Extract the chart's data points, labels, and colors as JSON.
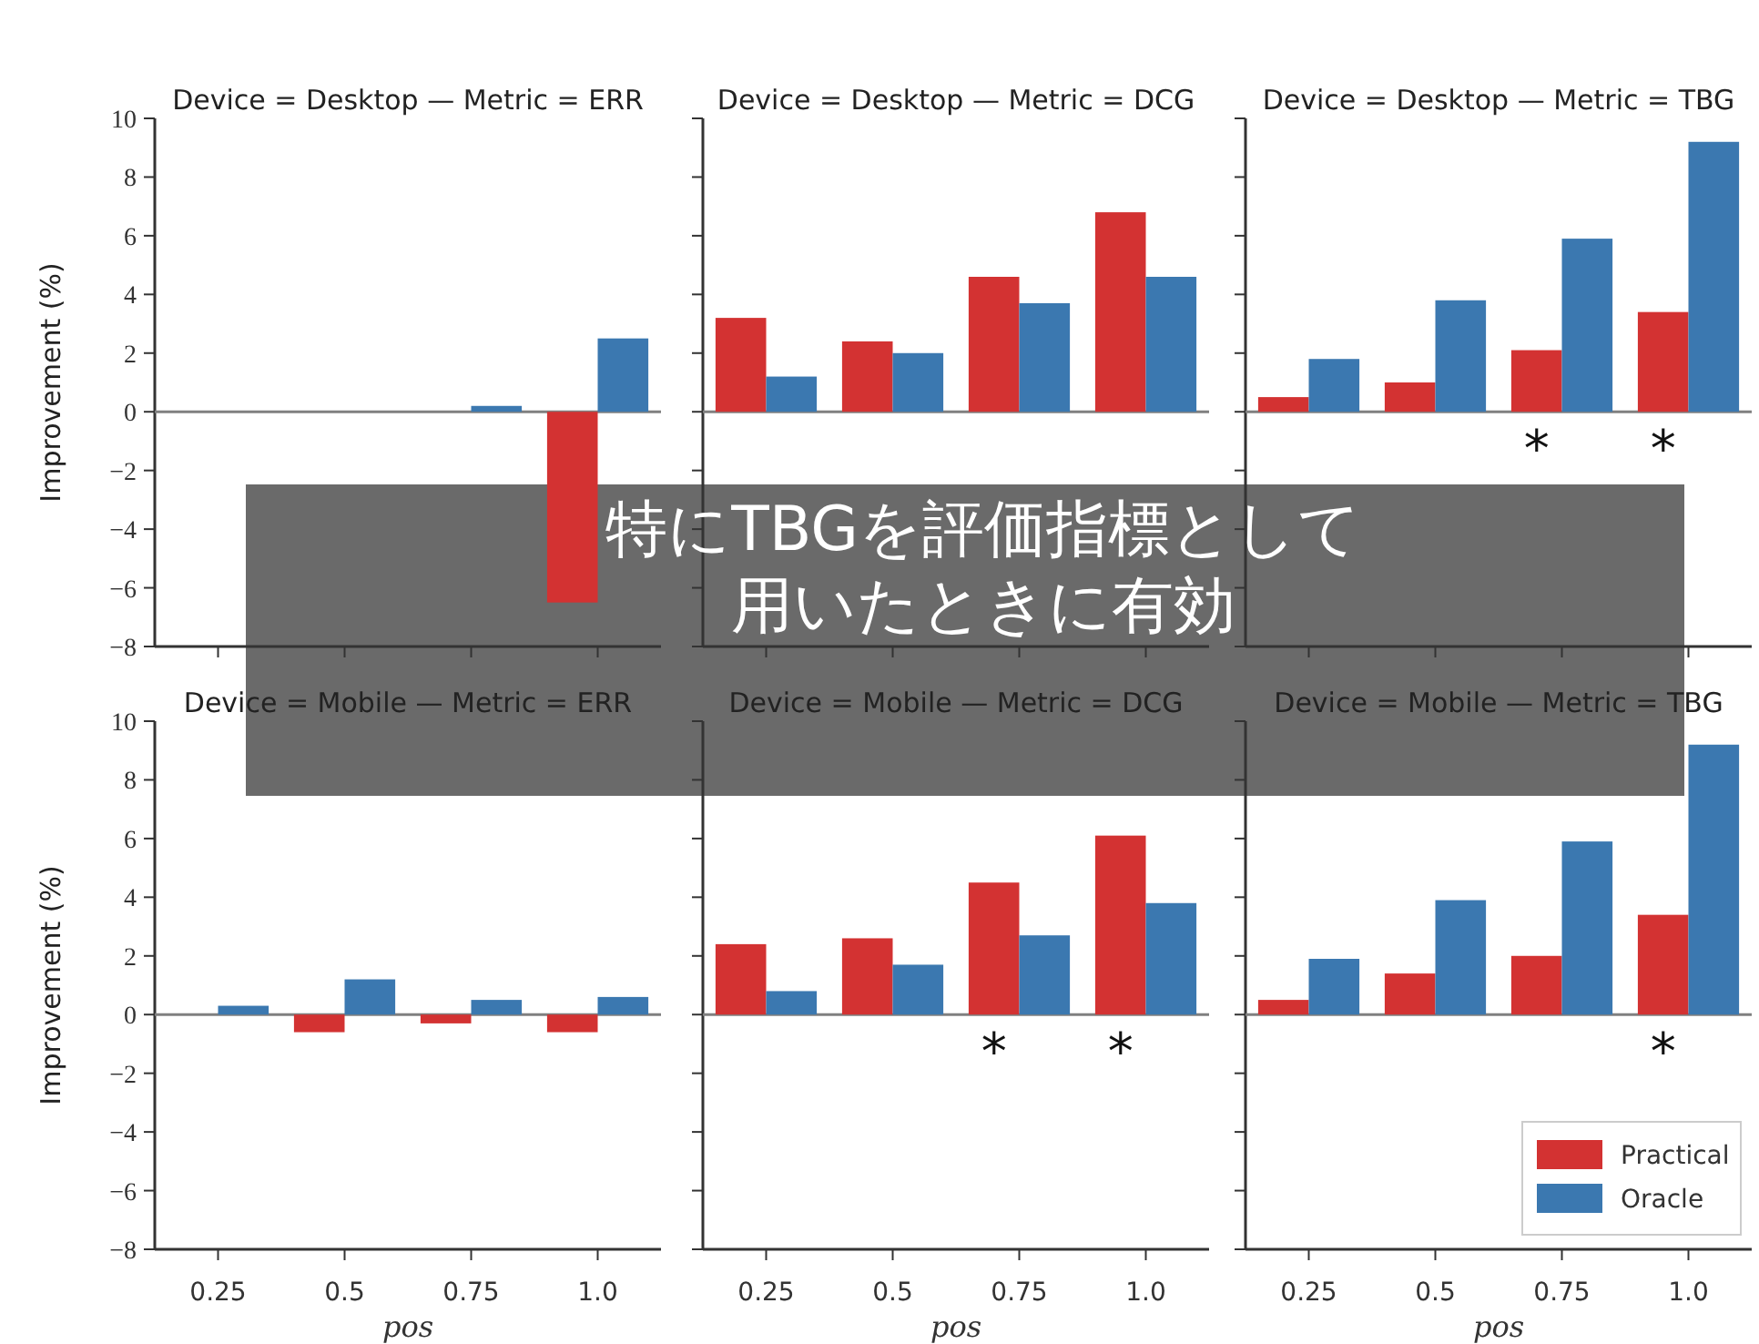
{
  "chart_data": [
    {
      "type": "bar",
      "title": "Device = Desktop — Metric = ERR",
      "ylabel": "Improvement (%)",
      "categories": [
        "0.25",
        "0.5",
        "0.75",
        "1.0"
      ],
      "series": [
        {
          "color": "#d33232",
          "values": [
            0,
            0,
            0,
            -6.5
          ]
        },
        {
          "color": "#3b78b0",
          "values": [
            0,
            0,
            0.2,
            2.5
          ]
        }
      ],
      "ylim": [
        -8,
        10
      ],
      "yticks": [
        {
          "value": -8,
          "label": "−8"
        },
        {
          "value": -6,
          "label": "−6"
        },
        {
          "value": -4,
          "label": "−4"
        },
        {
          "value": -2,
          "label": "−2"
        },
        0,
        2,
        4,
        6,
        8,
        10
      ],
      "tick_labels": "y",
      "ref_lines": [
        {
          "axis": "y",
          "value": 0,
          "color": "#808080"
        }
      ],
      "annotations": [
        "特にTBGを評価指標として",
        "用いたときに有効"
      ]
    },
    {
      "type": "bar",
      "title": "Device = Desktop — Metric = DCG",
      "categories": [
        "0.25",
        "0.5",
        "0.75",
        "1.0"
      ],
      "series": [
        {
          "color": "#d33232",
          "values": [
            3.2,
            2.4,
            4.6,
            6.8
          ]
        },
        {
          "color": "#3b78b0",
          "values": [
            1.2,
            2.0,
            3.7,
            4.6
          ]
        }
      ],
      "ylim": [
        -8,
        10
      ],
      "yticks": [
        -8,
        -6,
        -4,
        -2,
        0,
        2,
        4,
        6,
        8,
        10
      ],
      "tick_labels": false,
      "ref_lines": [
        {
          "axis": "y",
          "value": 0,
          "color": "#808080"
        }
      ]
    },
    {
      "type": "bar",
      "title": "Device = Desktop — Metric = TBG",
      "categories": [
        "0.25",
        "0.5",
        "0.75",
        "1.0"
      ],
      "series": [
        {
          "color": "#d33232",
          "values": [
            0.5,
            1.0,
            2.1,
            3.4
          ],
          "value_labels": [
            null,
            null,
            "*",
            "*"
          ]
        },
        {
          "color": "#3b78b0",
          "values": [
            1.8,
            3.8,
            5.9,
            9.2
          ]
        }
      ],
      "ylim": [
        -8,
        10
      ],
      "yticks": [
        -8,
        -6,
        -4,
        -2,
        0,
        2,
        4,
        6,
        8,
        10
      ],
      "tick_labels": false,
      "ref_lines": [
        {
          "axis": "y",
          "value": 0,
          "color": "#808080"
        }
      ]
    },
    {
      "type": "bar",
      "title": "Device = Mobile — Metric = ERR",
      "ylabel": "Improvement (%)",
      "xlabel": "pos",
      "categories": [
        "0.25",
        "0.5",
        "0.75",
        "1.0"
      ],
      "series": [
        {
          "color": "#d33232",
          "values": [
            0,
            -0.6,
            -0.3,
            -0.6
          ]
        },
        {
          "color": "#3b78b0",
          "values": [
            0.3,
            1.2,
            0.5,
            0.6
          ]
        }
      ],
      "ylim": [
        -8,
        10
      ],
      "yticks": [
        {
          "value": -8,
          "label": "−8"
        },
        {
          "value": -6,
          "label": "−6"
        },
        {
          "value": -4,
          "label": "−4"
        },
        {
          "value": -2,
          "label": "−2"
        },
        0,
        2,
        4,
        6,
        8,
        10
      ],
      "ref_lines": [
        {
          "axis": "y",
          "value": 0,
          "color": "#808080"
        }
      ]
    },
    {
      "type": "bar",
      "title": "Device = Mobile — Metric = DCG",
      "xlabel": "pos",
      "categories": [
        "0.25",
        "0.5",
        "0.75",
        "1.0"
      ],
      "series": [
        {
          "color": "#d33232",
          "values": [
            2.4,
            2.6,
            4.5,
            6.1
          ],
          "value_labels": [
            null,
            null,
            "*",
            "*"
          ]
        },
        {
          "color": "#3b78b0",
          "values": [
            0.8,
            1.7,
            2.7,
            3.8
          ]
        }
      ],
      "ylim": [
        -8,
        10
      ],
      "yticks": [
        -8,
        -6,
        -4,
        -2,
        0,
        2,
        4,
        6,
        8,
        10
      ],
      "tick_labels": "x",
      "ref_lines": [
        {
          "axis": "y",
          "value": 0,
          "color": "#808080"
        }
      ]
    },
    {
      "type": "bar",
      "title": "Device = Mobile — Metric = TBG",
      "xlabel": "pos",
      "categories": [
        "0.25",
        "0.5",
        "0.75",
        "1.0"
      ],
      "series": [
        {
          "name": "Practical",
          "color": "#d33232",
          "values": [
            0.5,
            1.4,
            2.0,
            3.4
          ],
          "value_labels": [
            null,
            null,
            null,
            "*"
          ]
        },
        {
          "name": "Oracle",
          "color": "#3b78b0",
          "values": [
            1.9,
            3.9,
            5.9,
            9.2
          ]
        }
      ],
      "ylim": [
        -8,
        10
      ],
      "yticks": [
        -8,
        -6,
        -4,
        -2,
        0,
        2,
        4,
        6,
        8,
        10
      ],
      "tick_labels": "x",
      "ref_lines": [
        {
          "axis": "y",
          "value": 0,
          "color": "#808080"
        }
      ],
      "legend": "bottom right"
    }
  ]
}
